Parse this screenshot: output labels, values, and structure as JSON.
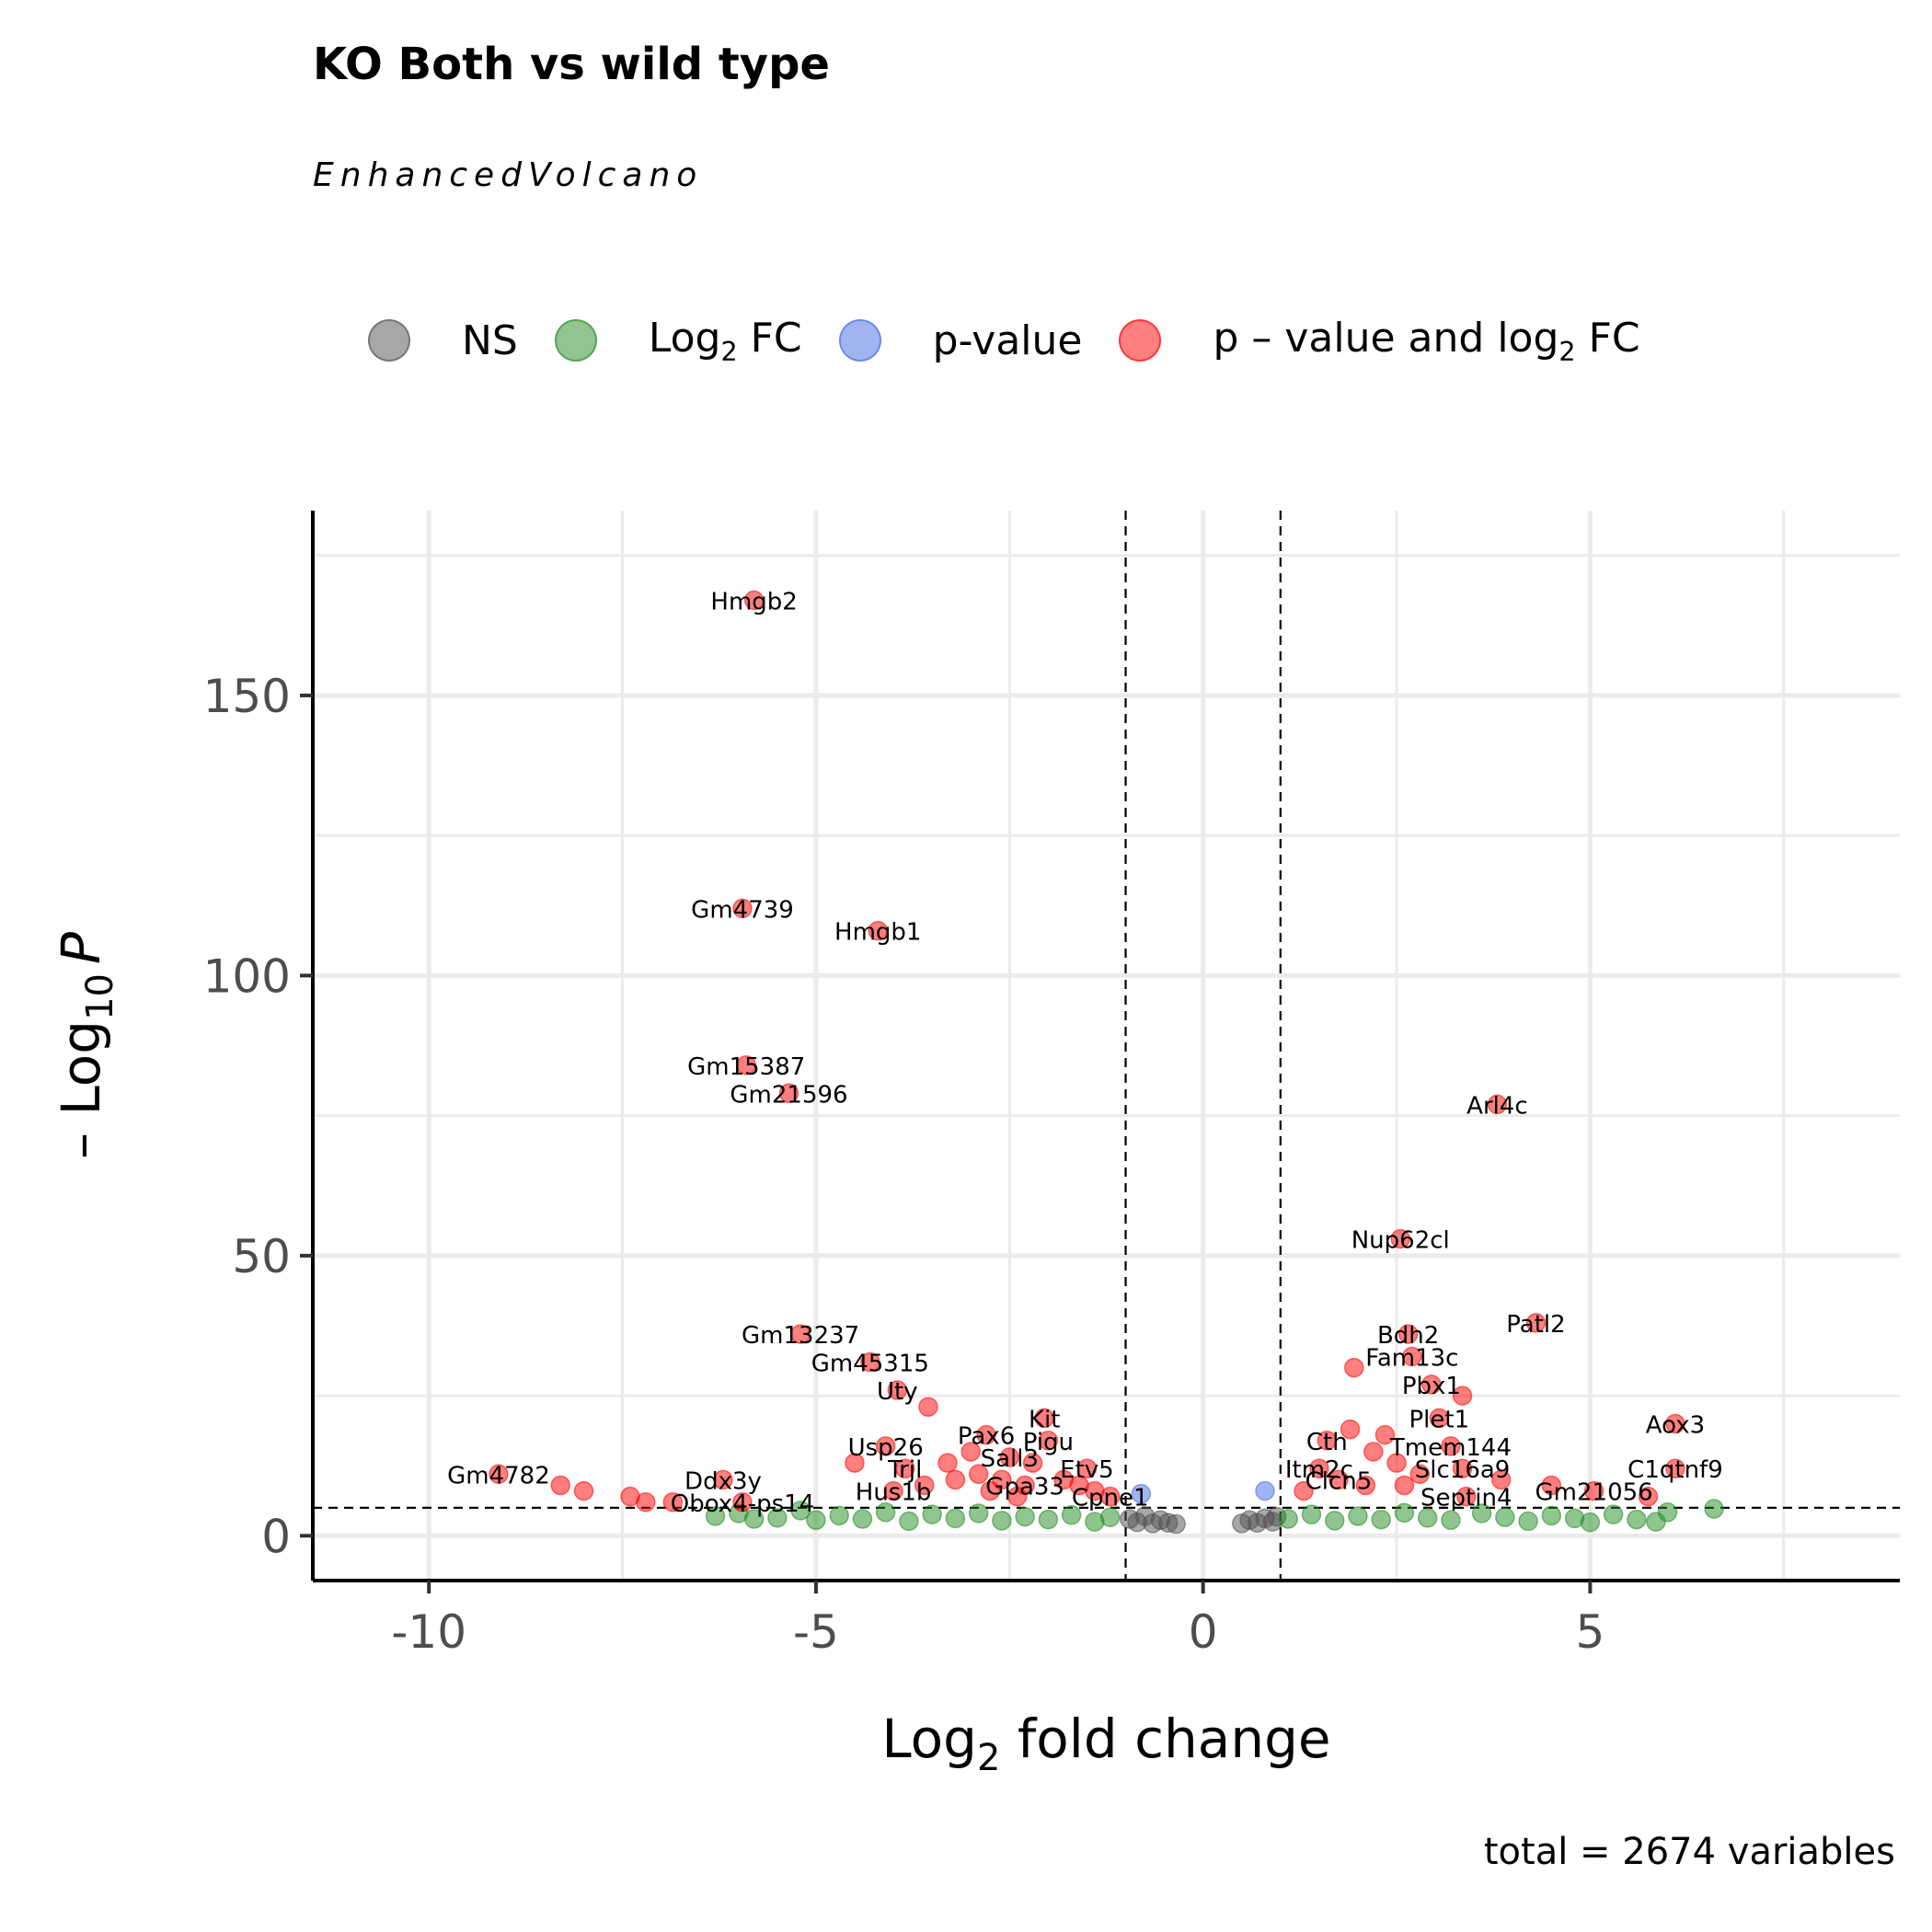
{
  "chart_data": {
    "type": "scatter",
    "title": "KO Both vs wild type",
    "subtitle": "EnhancedVolcano",
    "caption": "total = 2674 variables",
    "xlabel_main": "Log",
    "xlabel_sub": "2",
    "xlabel_rest": " fold change",
    "ylabel_prefix": "– Log",
    "ylabel_sub": "10",
    "ylabel_p": "P",
    "xlim": [
      -11.5,
      9
    ],
    "ylim": [
      -8,
      183
    ],
    "x_ticks": [
      -10,
      -5,
      0,
      5
    ],
    "y_ticks": [
      0,
      50,
      100,
      150
    ],
    "fc_cutoff": [
      -1,
      1
    ],
    "p_cutoff": 5,
    "grid": true,
    "legend_position": "top",
    "legend": [
      {
        "name": "NS",
        "color": "#505050"
      },
      {
        "name_main": "Log",
        "name_sub": "2",
        "name_rest": " FC",
        "color": "#228b22"
      },
      {
        "name": "p-value",
        "color": "#4169e1"
      },
      {
        "name_main": "p – value and log",
        "name_sub": "2",
        "name_rest": " FC",
        "color": "#ff0000"
      }
    ],
    "series": [
      {
        "category": "p-value and log2 FC",
        "color": "#ff0000",
        "points": [
          {
            "x": -5.8,
            "y": 167,
            "label": "Hmgb2"
          },
          {
            "x": -5.95,
            "y": 112,
            "label": "Gm4739"
          },
          {
            "x": -4.2,
            "y": 108,
            "label": "Hmgb1"
          },
          {
            "x": -5.9,
            "y": 84,
            "label": "Gm15387"
          },
          {
            "x": -5.35,
            "y": 79,
            "label": "Gm21596"
          },
          {
            "x": -5.2,
            "y": 36,
            "label": "Gm13237"
          },
          {
            "x": -4.3,
            "y": 31,
            "label": "Gm45315"
          },
          {
            "x": -3.95,
            "y": 26,
            "label": "Uty"
          },
          {
            "x": -3.55,
            "y": 23
          },
          {
            "x": -2.05,
            "y": 21,
            "label": "Kit"
          },
          {
            "x": -4.1,
            "y": 16,
            "label": "Usp26"
          },
          {
            "x": -2.8,
            "y": 18,
            "label": "Pax6"
          },
          {
            "x": -2.0,
            "y": 17,
            "label": "Pigu"
          },
          {
            "x": -2.5,
            "y": 14,
            "label": "Sall3"
          },
          {
            "x": -3.85,
            "y": 12,
            "label": "Trjl"
          },
          {
            "x": -1.5,
            "y": 12,
            "label": "Etv5"
          },
          {
            "x": -4.0,
            "y": 8,
            "label": "Hus1b"
          },
          {
            "x": -2.3,
            "y": 9,
            "label": "Gpa33"
          },
          {
            "x": -1.2,
            "y": 7,
            "label": "Cpne1"
          },
          {
            "x": -9.1,
            "y": 11,
            "label": "Gm4782"
          },
          {
            "x": -8.3,
            "y": 9
          },
          {
            "x": -8.0,
            "y": 8
          },
          {
            "x": -7.4,
            "y": 7
          },
          {
            "x": -7.2,
            "y": 6
          },
          {
            "x": -6.85,
            "y": 6
          },
          {
            "x": -6.2,
            "y": 10,
            "label": "Ddx3y"
          },
          {
            "x": -5.95,
            "y": 6,
            "label": "Obox4-ps14"
          },
          {
            "x": -4.5,
            "y": 13
          },
          {
            "x": -3.3,
            "y": 13
          },
          {
            "x": -3.0,
            "y": 15
          },
          {
            "x": -2.9,
            "y": 11
          },
          {
            "x": -2.6,
            "y": 10
          },
          {
            "x": -2.2,
            "y": 13
          },
          {
            "x": -1.8,
            "y": 10
          },
          {
            "x": -1.6,
            "y": 9
          },
          {
            "x": -1.4,
            "y": 8
          },
          {
            "x": -3.6,
            "y": 9
          },
          {
            "x": -3.2,
            "y": 10
          },
          {
            "x": -2.75,
            "y": 8
          },
          {
            "x": -2.4,
            "y": 7
          },
          {
            "x": 3.8,
            "y": 77,
            "label": "Arl4c"
          },
          {
            "x": 2.55,
            "y": 53,
            "label": "Nup62cl"
          },
          {
            "x": 4.3,
            "y": 38,
            "label": "Patl2"
          },
          {
            "x": 2.65,
            "y": 36,
            "label": "Bdh2"
          },
          {
            "x": 2.7,
            "y": 32,
            "label": "Fam13c"
          },
          {
            "x": 1.95,
            "y": 30
          },
          {
            "x": 2.95,
            "y": 27,
            "label": "Pbx1"
          },
          {
            "x": 3.35,
            "y": 25
          },
          {
            "x": 3.05,
            "y": 21,
            "label": "Plet1"
          },
          {
            "x": 6.1,
            "y": 20,
            "label": "Aox3"
          },
          {
            "x": 1.6,
            "y": 17,
            "label": "Cth"
          },
          {
            "x": 3.2,
            "y": 16,
            "label": "Tmem144"
          },
          {
            "x": 1.5,
            "y": 12,
            "label": "Itm2c"
          },
          {
            "x": 3.35,
            "y": 12,
            "label": "Slc16a9"
          },
          {
            "x": 6.1,
            "y": 12,
            "label": "C1qtnf9"
          },
          {
            "x": 1.75,
            "y": 10,
            "label": "Clcn5"
          },
          {
            "x": 4.5,
            "y": 9
          },
          {
            "x": 5.05,
            "y": 8,
            "label": "Gm21056"
          },
          {
            "x": 5.75,
            "y": 7
          },
          {
            "x": 3.4,
            "y": 7,
            "label": "Septin4"
          },
          {
            "x": 1.9,
            "y": 19
          },
          {
            "x": 2.2,
            "y": 15
          },
          {
            "x": 2.5,
            "y": 13
          },
          {
            "x": 2.8,
            "y": 11
          },
          {
            "x": 3.85,
            "y": 10
          },
          {
            "x": 2.1,
            "y": 9
          },
          {
            "x": 1.3,
            "y": 8
          },
          {
            "x": 2.35,
            "y": 18
          },
          {
            "x": 2.6,
            "y": 9
          }
        ]
      },
      {
        "category": "Log2 FC",
        "color": "#228b22",
        "points": [
          {
            "x": -6.3,
            "y": 3.5
          },
          {
            "x": -6.0,
            "y": 4
          },
          {
            "x": -5.8,
            "y": 3
          },
          {
            "x": -5.5,
            "y": 3.2
          },
          {
            "x": -5.2,
            "y": 4.5
          },
          {
            "x": -5.0,
            "y": 2.8
          },
          {
            "x": -4.7,
            "y": 3.6
          },
          {
            "x": -4.4,
            "y": 3
          },
          {
            "x": -4.1,
            "y": 4.2
          },
          {
            "x": -3.8,
            "y": 2.6
          },
          {
            "x": -3.5,
            "y": 3.8
          },
          {
            "x": -3.2,
            "y": 3.1
          },
          {
            "x": -2.9,
            "y": 4
          },
          {
            "x": -2.6,
            "y": 2.7
          },
          {
            "x": -2.3,
            "y": 3.4
          },
          {
            "x": -2.0,
            "y": 2.9
          },
          {
            "x": -1.7,
            "y": 3.7
          },
          {
            "x": -1.4,
            "y": 2.5
          },
          {
            "x": -1.2,
            "y": 3.3
          },
          {
            "x": 1.1,
            "y": 3
          },
          {
            "x": 1.4,
            "y": 3.8
          },
          {
            "x": 1.7,
            "y": 2.7
          },
          {
            "x": 2.0,
            "y": 3.5
          },
          {
            "x": 2.3,
            "y": 2.9
          },
          {
            "x": 2.6,
            "y": 4.1
          },
          {
            "x": 2.9,
            "y": 3.2
          },
          {
            "x": 3.2,
            "y": 2.8
          },
          {
            "x": 3.6,
            "y": 4
          },
          {
            "x": 3.9,
            "y": 3.3
          },
          {
            "x": 4.2,
            "y": 2.6
          },
          {
            "x": 4.5,
            "y": 3.6
          },
          {
            "x": 4.8,
            "y": 3.1
          },
          {
            "x": 5.0,
            "y": 2.4
          },
          {
            "x": 5.3,
            "y": 3.8
          },
          {
            "x": 5.6,
            "y": 2.9
          },
          {
            "x": 5.85,
            "y": 2.5
          },
          {
            "x": 6.0,
            "y": 4.2
          },
          {
            "x": 6.6,
            "y": 4.8
          }
        ]
      },
      {
        "category": "p-value",
        "color": "#4169e1",
        "points": [
          {
            "x": -0.8,
            "y": 7.5
          },
          {
            "x": 0.8,
            "y": 8
          }
        ]
      },
      {
        "category": "NS",
        "color": "#505050",
        "points": [
          {
            "x": -0.95,
            "y": 3
          },
          {
            "x": -0.85,
            "y": 2.4
          },
          {
            "x": -0.75,
            "y": 3.5
          },
          {
            "x": -0.65,
            "y": 2.2
          },
          {
            "x": -0.55,
            "y": 2.8
          },
          {
            "x": -0.45,
            "y": 2.3
          },
          {
            "x": -0.35,
            "y": 2.1
          },
          {
            "x": 0.5,
            "y": 2.2
          },
          {
            "x": 0.6,
            "y": 2.8
          },
          {
            "x": 0.7,
            "y": 2.3
          },
          {
            "x": 0.8,
            "y": 3.1
          },
          {
            "x": 0.9,
            "y": 2.5
          },
          {
            "x": 0.95,
            "y": 3.4
          }
        ]
      }
    ]
  }
}
